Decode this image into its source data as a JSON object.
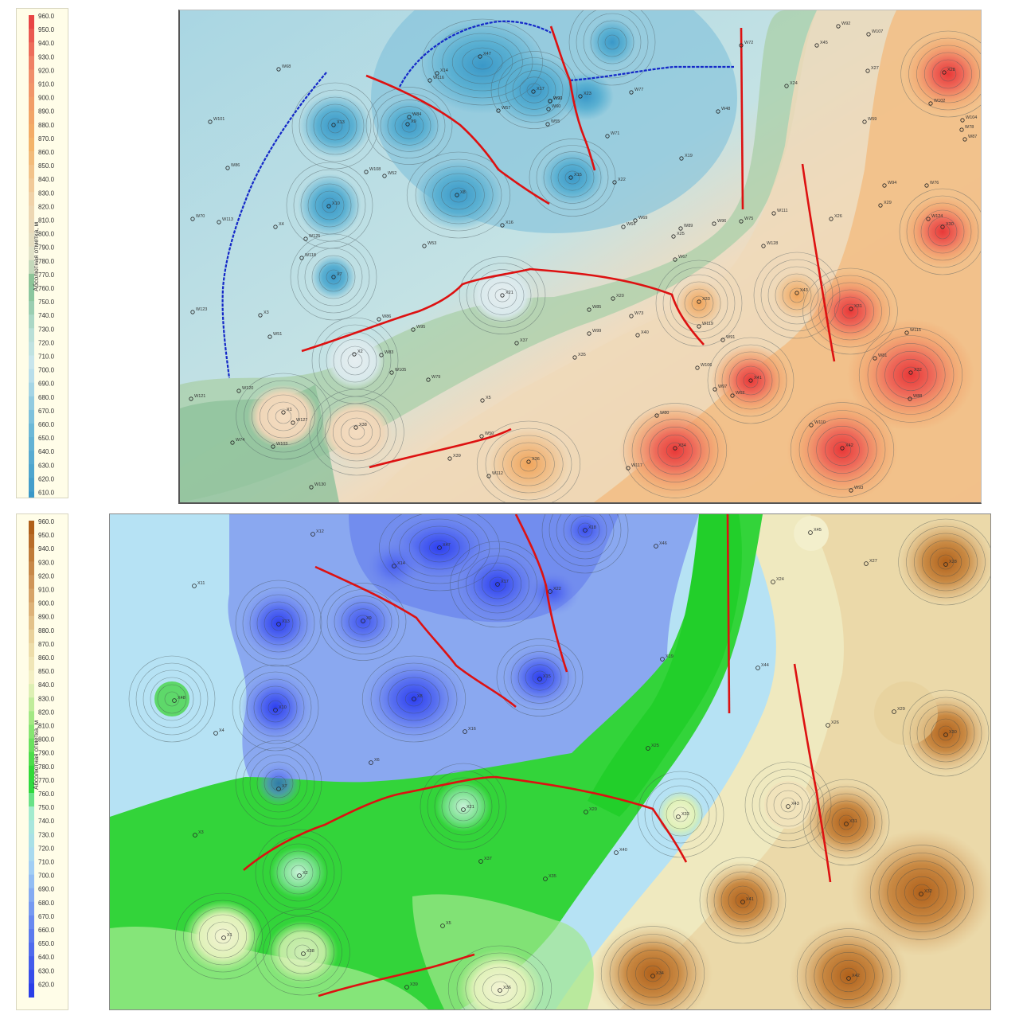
{
  "legend": {
    "title": "Абсолютная отметка, м"
  },
  "top_legend_ticks": [
    "960.0",
    "950.0",
    "940.0",
    "930.0",
    "920.0",
    "910.0",
    "900.0",
    "890.0",
    "880.0",
    "870.0",
    "860.0",
    "850.0",
    "840.0",
    "830.0",
    "820.0",
    "810.0",
    "800.0",
    "790.0",
    "780.0",
    "770.0",
    "760.0",
    "750.0",
    "740.0",
    "730.0",
    "720.0",
    "710.0",
    "700.0",
    "690.0",
    "680.0",
    "670.0",
    "660.0",
    "650.0",
    "640.0",
    "630.0",
    "620.0",
    "610.0"
  ],
  "bottom_legend_ticks": [
    "960.0",
    "950.0",
    "940.0",
    "930.0",
    "920.0",
    "910.0",
    "900.0",
    "890.0",
    "880.0",
    "870.0",
    "860.0",
    "850.0",
    "840.0",
    "830.0",
    "820.0",
    "810.0",
    "800.0",
    "790.0",
    "780.0",
    "770.0",
    "760.0",
    "750.0",
    "740.0",
    "730.0",
    "720.0",
    "710.0",
    "700.0",
    "690.0",
    "680.0",
    "670.0",
    "660.0",
    "650.0",
    "640.0",
    "630.0",
    "620.0"
  ],
  "top_colors": {
    "low": "#3a9ccc",
    "mid_low": "#b9dfe8",
    "green": "#7fbf8f",
    "beige": "#efdcc0",
    "orange": "#f2b26a",
    "high": "#e84545"
  },
  "bottom_colors": {
    "low": "#2a3ee8",
    "mid_low": "#a9d7f4",
    "green": "#1ed62a",
    "light": "#f4f1c6",
    "tan": "#e0b67a",
    "high": "#b0601a"
  },
  "fault_color": "#dd1111",
  "boundary_color": "#1122cc",
  "top_wells": [
    {
      "name": "X47",
      "v": 0.6
    },
    {
      "name": "X14",
      "v": 0.55
    },
    {
      "name": "W116",
      "v": 0.5
    },
    {
      "name": "X17",
      "v": 0.6
    },
    {
      "name": "W90",
      "v": 0.4
    },
    {
      "name": "X13",
      "v": 0.55
    },
    {
      "name": "W84",
      "v": 0.4
    },
    {
      "name": "X9",
      "v": 0.55
    },
    {
      "name": "W55",
      "v": 0.3
    },
    {
      "name": "X23",
      "v": 0.5
    },
    {
      "name": "X8",
      "v": 0.6
    },
    {
      "name": "W52",
      "v": 0.3
    },
    {
      "name": "X10",
      "v": 0.55
    },
    {
      "name": "X15",
      "v": 0.5
    },
    {
      "name": "X16",
      "v": 0.3
    },
    {
      "name": "X7",
      "v": 0.4
    },
    {
      "name": "X21",
      "v": 0.2
    },
    {
      "name": "X2",
      "v": 0.2
    },
    {
      "name": "X1",
      "v": 0.2
    },
    {
      "name": "X38",
      "v": 0.2
    },
    {
      "name": "X28",
      "v": 0.8
    },
    {
      "name": "X30",
      "v": 0.7
    },
    {
      "name": "X31",
      "v": 0.8
    },
    {
      "name": "X32",
      "v": 0.9
    },
    {
      "name": "X41",
      "v": 0.7
    },
    {
      "name": "X42",
      "v": 0.9
    },
    {
      "name": "X34",
      "v": 0.8
    },
    {
      "name": "X36",
      "v": 0.5
    },
    {
      "name": "X33",
      "v": 0.4
    },
    {
      "name": "X43",
      "v": 0.4
    },
    {
      "name": "X45",
      "v": 0.3
    },
    {
      "name": "X27",
      "v": 0.3
    },
    {
      "name": "X26",
      "v": 0.3
    },
    {
      "name": "X29",
      "v": 0.3
    },
    {
      "name": "X24",
      "v": 0.3
    },
    {
      "name": "X22",
      "v": 0.3
    },
    {
      "name": "X19",
      "v": 0.3
    },
    {
      "name": "X25",
      "v": 0.3
    },
    {
      "name": "X20",
      "v": 0.3
    },
    {
      "name": "X37",
      "v": 0.3
    },
    {
      "name": "X35",
      "v": 0.3
    },
    {
      "name": "X40",
      "v": 0.3
    },
    {
      "name": "X5",
      "v": 0.3
    },
    {
      "name": "X39",
      "v": 0.3
    },
    {
      "name": "X3",
      "v": 0.3
    },
    {
      "name": "X4",
      "v": 0.3
    },
    {
      "name": "W68",
      "v": 0.3
    },
    {
      "name": "W101",
      "v": 0.3
    },
    {
      "name": "W86",
      "v": 0.3
    },
    {
      "name": "W70",
      "v": 0.3
    },
    {
      "name": "W113",
      "v": 0.3
    },
    {
      "name": "W125",
      "v": 0.3
    },
    {
      "name": "W118",
      "v": 0.3
    },
    {
      "name": "W123",
      "v": 0.3
    },
    {
      "name": "W51",
      "v": 0.3
    },
    {
      "name": "W121",
      "v": 0.3
    },
    {
      "name": "W120",
      "v": 0.3
    },
    {
      "name": "W127",
      "v": 0.3
    },
    {
      "name": "W74",
      "v": 0.3
    },
    {
      "name": "W103",
      "v": 0.3
    },
    {
      "name": "W130",
      "v": 0.3
    },
    {
      "name": "W72",
      "v": 0.3
    },
    {
      "name": "W92",
      "v": 0.3
    },
    {
      "name": "W107",
      "v": 0.3
    },
    {
      "name": "W102",
      "v": 0.3
    },
    {
      "name": "W104",
      "v": 0.3
    },
    {
      "name": "W78",
      "v": 0.3
    },
    {
      "name": "W87",
      "v": 0.3
    },
    {
      "name": "W59",
      "v": 0.3
    },
    {
      "name": "W94",
      "v": 0.3
    },
    {
      "name": "W76",
      "v": 0.3
    },
    {
      "name": "W124",
      "v": 0.3
    },
    {
      "name": "W115",
      "v": 0.3
    },
    {
      "name": "W81",
      "v": 0.3
    },
    {
      "name": "W88",
      "v": 0.3
    },
    {
      "name": "W90",
      "v": 0.3
    },
    {
      "name": "W110",
      "v": 0.3
    },
    {
      "name": "W93",
      "v": 0.3
    },
    {
      "name": "W119",
      "v": 0.3
    },
    {
      "name": "W91",
      "v": 0.3
    },
    {
      "name": "W106",
      "v": 0.3
    },
    {
      "name": "W97",
      "v": 0.3
    },
    {
      "name": "W62",
      "v": 0.3
    },
    {
      "name": "W80",
      "v": 0.3
    },
    {
      "name": "W117",
      "v": 0.3
    },
    {
      "name": "W77",
      "v": 0.3
    },
    {
      "name": "W71",
      "v": 0.3
    },
    {
      "name": "W48",
      "v": 0.3
    },
    {
      "name": "W111",
      "v": 0.3
    },
    {
      "name": "W128",
      "v": 0.3
    },
    {
      "name": "W75",
      "v": 0.3
    },
    {
      "name": "W96",
      "v": 0.3
    },
    {
      "name": "W69",
      "v": 0.3
    },
    {
      "name": "W67",
      "v": 0.3
    },
    {
      "name": "W89",
      "v": 0.3
    },
    {
      "name": "W64",
      "v": 0.3
    },
    {
      "name": "W53",
      "v": 0.3
    },
    {
      "name": "W57",
      "v": 0.3
    },
    {
      "name": "W95",
      "v": 0.3
    },
    {
      "name": "W86b",
      "v": 0.3
    },
    {
      "name": "W83",
      "v": 0.3
    },
    {
      "name": "W105",
      "v": 0.3
    },
    {
      "name": "W79",
      "v": 0.3
    },
    {
      "name": "W85",
      "v": 0.3
    },
    {
      "name": "W99",
      "v": 0.3
    },
    {
      "name": "W73",
      "v": 0.3
    },
    {
      "name": "W112",
      "v": 0.3
    },
    {
      "name": "W108",
      "v": 0.3
    },
    {
      "name": "W60",
      "v": 0.3
    },
    {
      "name": "W50",
      "v": 0.3
    }
  ],
  "bottom_wells": [
    "X12",
    "X18",
    "X47",
    "X14",
    "X17",
    "X22",
    "X11",
    "X13",
    "X9",
    "X46",
    "X19",
    "X48",
    "X10",
    "X8",
    "X16",
    "X15",
    "X4",
    "X6",
    "X7",
    "X3",
    "X2",
    "X1",
    "X38",
    "X39",
    "X36",
    "X5",
    "X37",
    "X35",
    "X21",
    "X20",
    "X40",
    "X33",
    "X25",
    "X44",
    "X24",
    "X45",
    "X27",
    "X28",
    "X29",
    "X30",
    "X26",
    "X43",
    "X31",
    "X32",
    "X41",
    "X34",
    "X42"
  ]
}
